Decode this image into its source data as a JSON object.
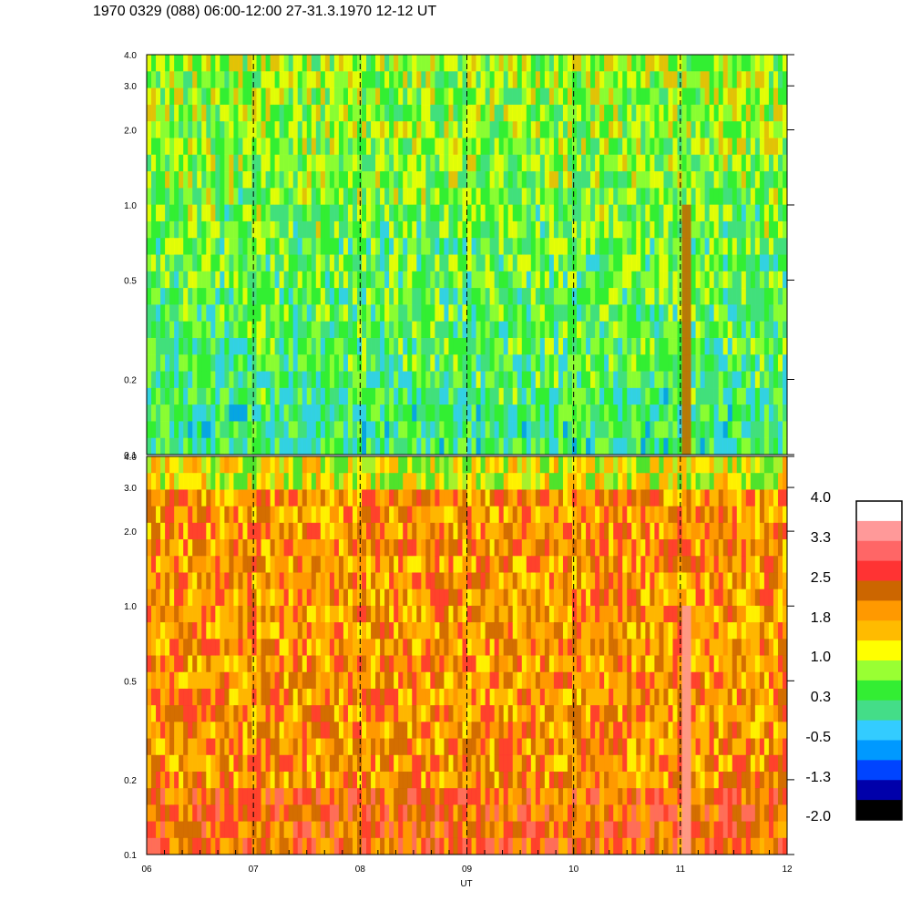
{
  "title": "1970 0329 (088) 06:00-12:00 27-31.3.1970  12-12 UT",
  "chart_data": {
    "type": "heatmap",
    "title": "1970 0329 (088) 06:00-12:00 27-31.3.1970  12-12 UT",
    "xlabel": "UT",
    "x_ticks": [
      "06",
      "07",
      "08",
      "09",
      "10",
      "11",
      "12"
    ],
    "x_range": [
      6,
      12
    ],
    "panels": [
      {
        "name": "upper",
        "y_scale": "log",
        "y_range": [
          0.1,
          4.0
        ],
        "y_ticks": [
          {
            "value": 0.1,
            "label": "0.1"
          },
          {
            "value": 0.2,
            "label": "0.2"
          },
          {
            "value": 0.5,
            "label": "0.5"
          },
          {
            "value": 1.0,
            "label": "1.0"
          },
          {
            "value": 2.0,
            "label": "2.0"
          },
          {
            "value": 3.0,
            "label": "3.0"
          },
          {
            "value": 4.0,
            "label": "4.0"
          }
        ],
        "dominant_level": 0.3,
        "dashed_hour_lines": [
          7,
          8,
          9,
          10,
          11
        ]
      },
      {
        "name": "lower",
        "y_scale": "log",
        "y_range": [
          0.1,
          4.0
        ],
        "y_ticks": [
          {
            "value": 0.1,
            "label": "0.1"
          },
          {
            "value": 0.2,
            "label": "0.2"
          },
          {
            "value": 0.5,
            "label": "0.5"
          },
          {
            "value": 1.0,
            "label": "1.0"
          },
          {
            "value": 2.0,
            "label": "2.0"
          },
          {
            "value": 3.0,
            "label": "3.0"
          },
          {
            "value": 4.0,
            "label": "4.0"
          }
        ],
        "dominant_level": 1.8,
        "dashed_hour_lines": [
          7,
          8,
          9,
          10,
          11
        ]
      }
    ],
    "colorbar": {
      "labels": [
        "4.0",
        "3.3",
        "2.5",
        "1.8",
        "1.0",
        "0.3",
        "-0.5",
        "-1.3",
        "-2.0"
      ],
      "colors": [
        "#ffffff",
        "#ff9999",
        "#ff6666",
        "#ff3333",
        "#cc6600",
        "#ff9900",
        "#ffbb00",
        "#ffff00",
        "#99ff33",
        "#33ee33",
        "#44dd88",
        "#33ccff",
        "#0099ff",
        "#0044ff",
        "#0000aa",
        "#000000"
      ]
    }
  }
}
